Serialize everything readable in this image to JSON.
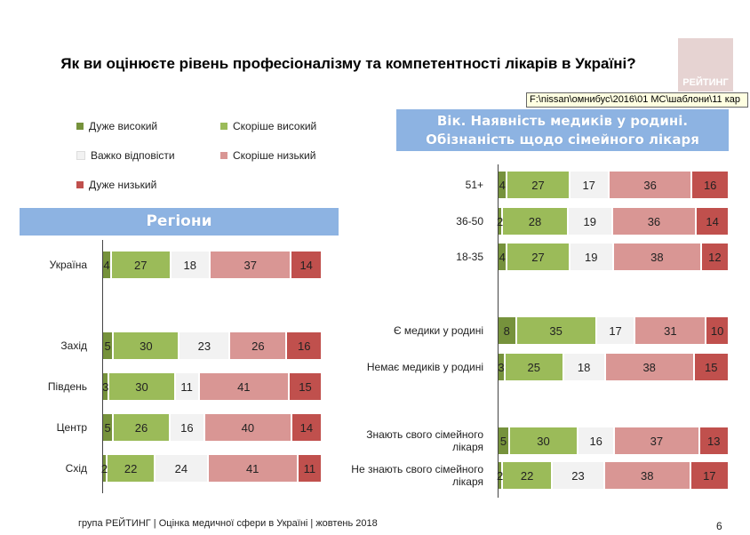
{
  "title": "Як ви оцінюєте рівень професіоналізму та компетентності лікарів в Україні?",
  "logo_text": "РЕЙТИНГ",
  "tooltip": "F:\\nissan\\омнибус\\2016\\01 МС\\шаблони\\11 кар",
  "legend": [
    {
      "label": "Дуже високий",
      "color": "#76923c"
    },
    {
      "label": "Скоріше високий",
      "color": "#9bbb59"
    },
    {
      "label": "Важко відповісти",
      "color": "#f2f2f2"
    },
    {
      "label": "Скоріше низький",
      "color": "#d99694"
    },
    {
      "label": "Дуже низький",
      "color": "#c0504d"
    }
  ],
  "footer": "група РЕЙТИНГ  |  Оцінка медичної сфери в Україні  |  жовтень 2018",
  "page_number": "6",
  "chart_data": [
    {
      "type": "bar",
      "stacked": "100%",
      "orientation": "horizontal",
      "title": "Регіони",
      "series_names": [
        "Дуже високий",
        "Скоріше високий",
        "Важко відповісти",
        "Скоріше низький",
        "Дуже низький"
      ],
      "categories": [
        "Україна",
        "Захід",
        "Південь",
        "Центр",
        "Схід"
      ],
      "values": [
        [
          4,
          27,
          18,
          37,
          14
        ],
        [
          5,
          30,
          23,
          26,
          16
        ],
        [
          3,
          30,
          11,
          41,
          15
        ],
        [
          5,
          26,
          16,
          40,
          14
        ],
        [
          2,
          22,
          24,
          41,
          11
        ]
      ]
    },
    {
      "type": "bar",
      "stacked": "100%",
      "orientation": "horizontal",
      "title_line1": "Вік. Наявність медиків у родині.",
      "title_line2": "Обізнаність щодо сімейного лікаря",
      "series_names": [
        "Дуже високий",
        "Скоріше високий",
        "Важко відповісти",
        "Скоріше низький",
        "Дуже низький"
      ],
      "categories": [
        "51+",
        "36-50",
        "18-35",
        "Є медики у родині",
        "Немає медиків у родині",
        "Знають свого сімейного лікаря",
        "Не знають свого сімейного лікаря"
      ],
      "values": [
        [
          4,
          27,
          17,
          36,
          16
        ],
        [
          2,
          28,
          19,
          36,
          14
        ],
        [
          4,
          27,
          19,
          38,
          12
        ],
        [
          8,
          35,
          17,
          31,
          10
        ],
        [
          3,
          25,
          18,
          38,
          15
        ],
        [
          5,
          30,
          16,
          37,
          13
        ],
        [
          2,
          22,
          23,
          38,
          17
        ]
      ]
    }
  ]
}
